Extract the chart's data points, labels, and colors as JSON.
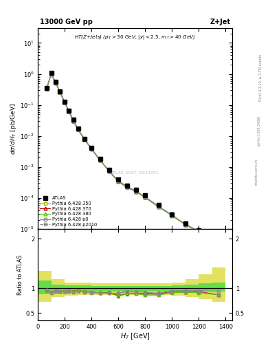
{
  "title_left": "13000 GeV pp",
  "title_right": "Z+Jet",
  "annotation": "HT(Z+jets) (p_{T} > 30 GeV, |y| < 2.5, m_{T} > 40 GeV)",
  "watermark": "ATLAS_2017_I1514251",
  "ylabel_main": "dσ/dH_T [pb/GeV]",
  "ylabel_ratio": "Ratio to ATLAS",
  "xlabel": "H_T [GeV]",
  "rivet_text": "Rivet 3.1.10, ≥ 2.7M events",
  "arxiv_text": "[arXiv:1306.3436]",
  "mcplots_text": "mcplots.cern.ch",
  "atlas_x": [
    66,
    100,
    133,
    166,
    200,
    233,
    266,
    300,
    350,
    400,
    466,
    533,
    600,
    666,
    733,
    800,
    900,
    1000,
    1100,
    1200,
    1350
  ],
  "atlas_y": [
    0.35,
    1.1,
    0.55,
    0.28,
    0.13,
    0.065,
    0.033,
    0.017,
    0.0082,
    0.0042,
    0.0018,
    0.0008,
    0.0004,
    0.00025,
    0.00018,
    0.00012,
    6e-05,
    3e-05,
    1.5e-05,
    9e-06,
    1.5e-06
  ],
  "atlas_yerr": [
    0.04,
    0.08,
    0.04,
    0.02,
    0.01,
    0.005,
    0.003,
    0.001,
    0.0006,
    0.0004,
    0.0002,
    0.0001,
    5e-05,
    3e-05,
    2e-05,
    1e-05,
    7e-06,
    4e-06,
    2e-06,
    1.5e-06,
    3e-07
  ],
  "py350_y": [
    0.335,
    1.01,
    0.525,
    0.263,
    0.122,
    0.0615,
    0.0308,
    0.0162,
    0.00763,
    0.00388,
    0.00163,
    0.00073,
    0.000345,
    0.000222,
    0.000161,
    0.000104,
    5.2e-05,
    2.75e-05,
    1.38e-05,
    8.2e-06,
    1.3e-06
  ],
  "py370_y": [
    0.335,
    1.01,
    0.525,
    0.263,
    0.122,
    0.0615,
    0.0308,
    0.0162,
    0.00763,
    0.00388,
    0.00163,
    0.000735,
    0.000338,
    0.000222,
    0.000161,
    0.000108,
    5.35e-05,
    2.78e-05,
    1.38e-05,
    8.4e-06,
    1.3e-06
  ],
  "py380_y": [
    0.335,
    1.01,
    0.525,
    0.263,
    0.122,
    0.0615,
    0.0308,
    0.0162,
    0.00763,
    0.00388,
    0.00163,
    0.000725,
    0.000335,
    0.000221,
    0.00016,
    0.000103,
    5.18e-05,
    2.72e-05,
    1.38e-05,
    8.2e-06,
    1.3e-06
  ],
  "pyp0_y": [
    0.335,
    1.0,
    0.515,
    0.262,
    0.121,
    0.061,
    0.0305,
    0.0161,
    0.00758,
    0.00383,
    0.00162,
    0.00072,
    0.00036,
    0.000235,
    0.000168,
    0.00011,
    5.4e-05,
    2.85e-05,
    1.43e-05,
    8.6e-06,
    1.4e-06
  ],
  "pyp2010_y": [
    0.335,
    1.0,
    0.515,
    0.262,
    0.121,
    0.061,
    0.0305,
    0.0161,
    0.00758,
    0.00383,
    0.00162,
    0.00072,
    0.000355,
    0.000232,
    0.000165,
    0.000106,
    5.25e-05,
    2.78e-05,
    1.4e-05,
    8.3e-06,
    1.3e-06
  ],
  "band_edges": [
    0,
    100,
    200,
    300,
    400,
    500,
    600,
    700,
    800,
    900,
    1000,
    1100,
    1200,
    1300,
    1400
  ],
  "band_inner_lo": [
    0.88,
    0.92,
    0.93,
    0.93,
    0.94,
    0.94,
    0.94,
    0.94,
    0.94,
    0.94,
    0.94,
    0.94,
    0.94,
    0.94
  ],
  "band_inner_hi": [
    1.15,
    1.08,
    1.06,
    1.06,
    1.05,
    1.05,
    1.05,
    1.05,
    1.05,
    1.05,
    1.06,
    1.08,
    1.1,
    1.12
  ],
  "band_outer_lo": [
    0.72,
    0.82,
    0.85,
    0.86,
    0.87,
    0.87,
    0.87,
    0.87,
    0.87,
    0.87,
    0.85,
    0.82,
    0.78,
    0.72
  ],
  "band_outer_hi": [
    1.35,
    1.18,
    1.12,
    1.11,
    1.1,
    1.1,
    1.1,
    1.1,
    1.1,
    1.1,
    1.12,
    1.18,
    1.28,
    1.42
  ],
  "color_350": "#aaaa00",
  "color_370": "#cc0000",
  "color_380": "#55cc00",
  "color_p0": "#888888",
  "color_p2010": "#888888",
  "color_band_inner": "#44dd44",
  "color_band_outer": "#dddd44",
  "xlim": [
    0,
    1450
  ],
  "ylim_main": [
    1e-05,
    30
  ],
  "ylim_ratio": [
    0.35,
    2.2
  ],
  "ratio_yticks": [
    0.5,
    1.0,
    2.0
  ],
  "ratio_yticklabels": [
    "0.5",
    "1",
    "2"
  ]
}
